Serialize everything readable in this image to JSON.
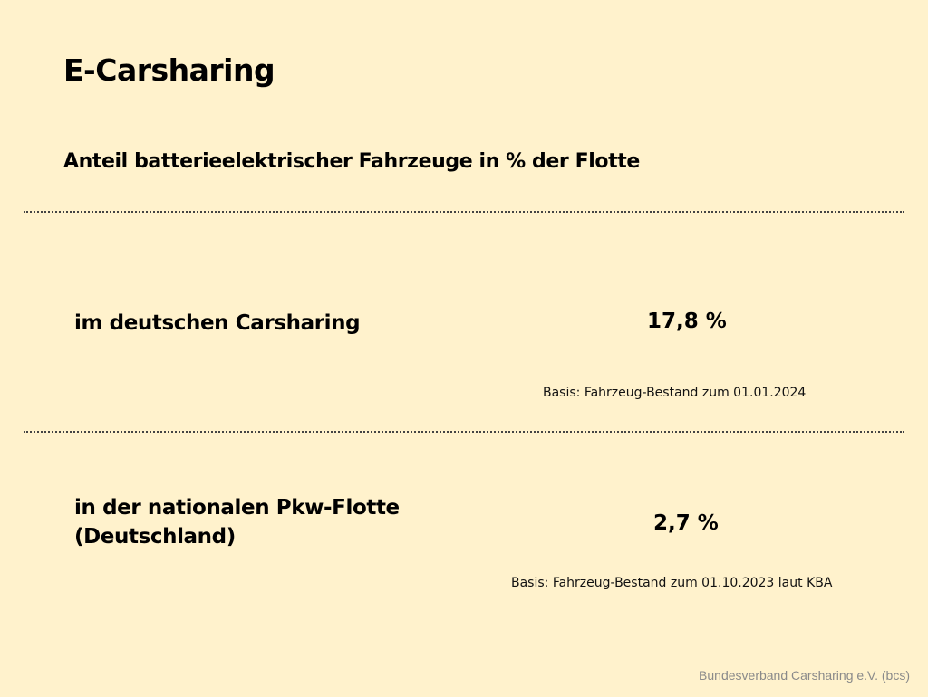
{
  "slide": {
    "title": "E-Carsharing",
    "subtitle": "Anteil batterieelektrischer Fahrzeuge in % der Flotte",
    "rows": [
      {
        "label": "im deutschen Carsharing",
        "value": "17,8 %",
        "basis": "Basis: Fahrzeug-Bestand zum 01.01.2024"
      },
      {
        "label": "in der nationalen Pkw-Flotte (Deutschland)",
        "value": "2,7 %",
        "basis": "Basis: Fahrzeug-Bestand zum 01.10.2023 laut KBA"
      }
    ],
    "footer": "Bundesverband Carsharing e.V. (bcs)"
  },
  "colors": {
    "background": "#fff2cc",
    "text": "#000000",
    "footer_text": "#8a8a8a",
    "divider": "#444444"
  }
}
